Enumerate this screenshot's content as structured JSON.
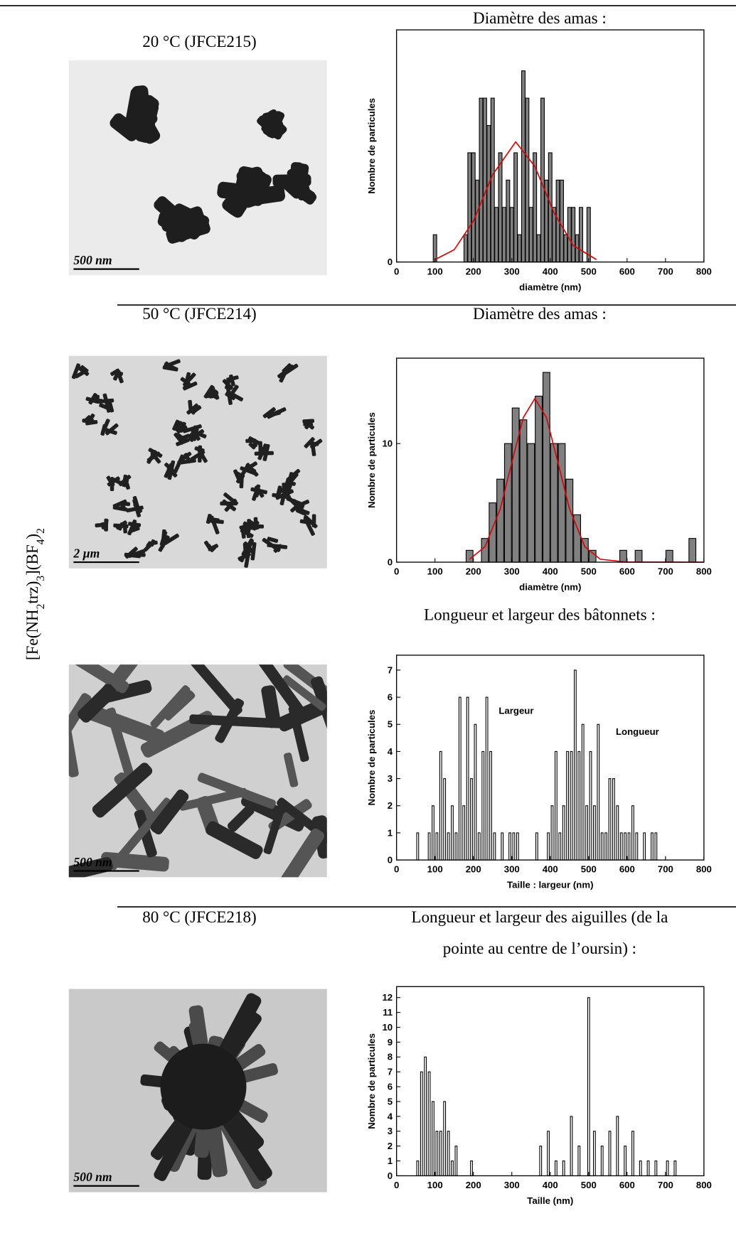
{
  "formula": [
    "[Fe(NH",
    "2",
    "trz)",
    "3",
    "](BF",
    "4",
    ")",
    "2"
  ],
  "rows": [
    {
      "label": "20 °C (JFCE215)",
      "heading": [
        "Diamètre des amas :"
      ],
      "scale_bar": "500 nm",
      "chart": {
        "type": "bar",
        "x_label": "diamètre (nm)",
        "y_label": "Nombre de particules",
        "xlim": [
          0,
          800
        ],
        "ylim": [
          0,
          8.5
        ],
        "xticks": [
          0,
          100,
          200,
          300,
          400,
          500,
          600,
          700,
          800
        ],
        "yticks": [
          0
        ],
        "series": [
          {
            "color": "#808080",
            "x": [
              100,
              180,
              190,
              200,
              210,
              220,
              230,
              240,
              250,
              260,
              270,
              280,
              290,
              300,
              310,
              320,
              330,
              340,
              350,
              360,
              370,
              380,
              390,
              400,
              410,
              420,
              430,
              440,
              450,
              460,
              470,
              480,
              500
            ],
            "values": [
              1,
              1,
              4,
              4,
              3,
              6,
              6,
              5,
              6,
              2,
              4,
              2,
              3,
              2,
              4,
              1,
              7,
              6,
              2,
              4,
              1,
              6,
              3,
              4,
              2,
              3,
              3,
              1,
              2,
              2,
              1,
              2,
              2
            ]
          }
        ],
        "fit": {
          "color": "#e00000",
          "x": [
            100,
            150,
            200,
            250,
            310,
            360,
            410,
            460,
            520
          ],
          "y": [
            0.09,
            0.45,
            1.5,
            3.2,
            4.4,
            3.5,
            1.8,
            0.6,
            0.09
          ]
        }
      }
    },
    {
      "label": "50 °C (JFCE214)",
      "heading": [
        "Diamètre des amas :"
      ],
      "scale_bar": "2 µm",
      "chart": {
        "type": "bar",
        "x_label": "diamètre (nm)",
        "y_label": "Nombre de particules",
        "xlim": [
          0,
          800
        ],
        "ylim": [
          0,
          17.2
        ],
        "xticks": [
          0,
          100,
          200,
          300,
          400,
          500,
          600,
          700,
          800
        ],
        "yticks": [
          0,
          10
        ],
        "series": [
          {
            "color": "#808080",
            "x": [
              190,
              230,
              250,
              270,
              290,
              310,
              330,
              350,
              370,
              390,
              410,
              430,
              450,
              470,
              490,
              510,
              590,
              630,
              710,
              770
            ],
            "values": [
              1,
              2,
              5,
              7,
              10,
              13,
              12,
              10,
              14,
              16,
              10,
              10,
              7,
              4,
              2,
              1,
              1,
              1,
              1,
              2
            ]
          }
        ],
        "fit": {
          "color": "#e00000",
          "x": [
            190,
            230,
            270,
            300,
            330,
            360,
            390,
            420,
            450,
            490,
            530,
            600,
            800
          ],
          "y": [
            0.25,
            1.3,
            4.5,
            8.4,
            12.2,
            13.8,
            12.2,
            8.4,
            4.5,
            1.3,
            0.25,
            0.01,
            0
          ]
        }
      }
    },
    {
      "heading": [
        "Longueur et largeur des bâtonnets :"
      ],
      "scale_bar": "500 nm",
      "chart": {
        "type": "bar",
        "x_label": "Taille : largeur (nm)",
        "y_label": "Nombre de particules",
        "xlim": [
          0,
          800
        ],
        "ylim": [
          0,
          7.55
        ],
        "xticks": [
          0,
          100,
          200,
          300,
          400,
          500,
          600,
          700,
          800
        ],
        "yticks": [
          0,
          1,
          2,
          3,
          4,
          5,
          6,
          7
        ],
        "series": [
          {
            "name": "Largeur",
            "color": "#ffffff",
            "x": [
              55,
              85,
              95,
              105,
              115,
              125,
              135,
              145,
              155,
              165,
              175,
              185,
              195,
              205,
              215,
              225,
              235,
              245,
              255,
              275,
              295,
              305,
              315
            ],
            "values": [
              1,
              1,
              2,
              1,
              4,
              3,
              1,
              2,
              1,
              6,
              2,
              6,
              3,
              5,
              1,
              4,
              6,
              4,
              1,
              1,
              1,
              1,
              1
            ]
          },
          {
            "name": "Longueur",
            "color": "#ffffff",
            "x": [
              365,
              395,
              405,
              415,
              425,
              435,
              445,
              455,
              465,
              475,
              485,
              495,
              505,
              515,
              525,
              535,
              545,
              555,
              565,
              575,
              585,
              595,
              605,
              615,
              625,
              645,
              665,
              675
            ],
            "values": [
              1,
              1,
              2,
              4,
              1,
              2,
              4,
              4,
              7,
              4,
              5,
              2,
              4,
              2,
              5,
              1,
              1,
              3,
              3,
              2,
              1,
              1,
              1,
              2,
              1,
              1,
              1,
              1
            ]
          }
        ]
      }
    },
    {
      "label": "80 °C (JFCE218)",
      "heading": [
        "Longueur et largeur des aiguilles (de la",
        "pointe au centre de l’oursin) :"
      ],
      "scale_bar": "500 nm",
      "chart": {
        "type": "bar",
        "x_label": "Taille (nm)",
        "y_label": "Nombre de particules",
        "xlim": [
          0,
          800
        ],
        "ylim": [
          0,
          12.74
        ],
        "xticks": [
          0,
          100,
          200,
          300,
          400,
          500,
          600,
          700,
          800
        ],
        "yticks": [
          0,
          1,
          2,
          3,
          4,
          5,
          6,
          7,
          8,
          9,
          10,
          11,
          12
        ],
        "series": [
          {
            "color": "#ffffff",
            "x": [
              55,
              65,
              75,
              85,
              95,
              105,
              115,
              125,
              135,
              145,
              155,
              195,
              375,
              395,
              415,
              435,
              455,
              475,
              500,
              515,
              535,
              555,
              575,
              595,
              615,
              635,
              655,
              675,
              705,
              725
            ],
            "values": [
              1,
              7,
              8,
              7,
              5,
              3,
              3,
              5,
              3,
              1,
              2,
              1,
              2,
              3,
              1,
              1,
              4,
              2,
              12,
              3,
              2,
              3,
              4,
              2,
              3,
              1,
              1,
              1,
              1,
              1
            ]
          }
        ]
      }
    }
  ]
}
